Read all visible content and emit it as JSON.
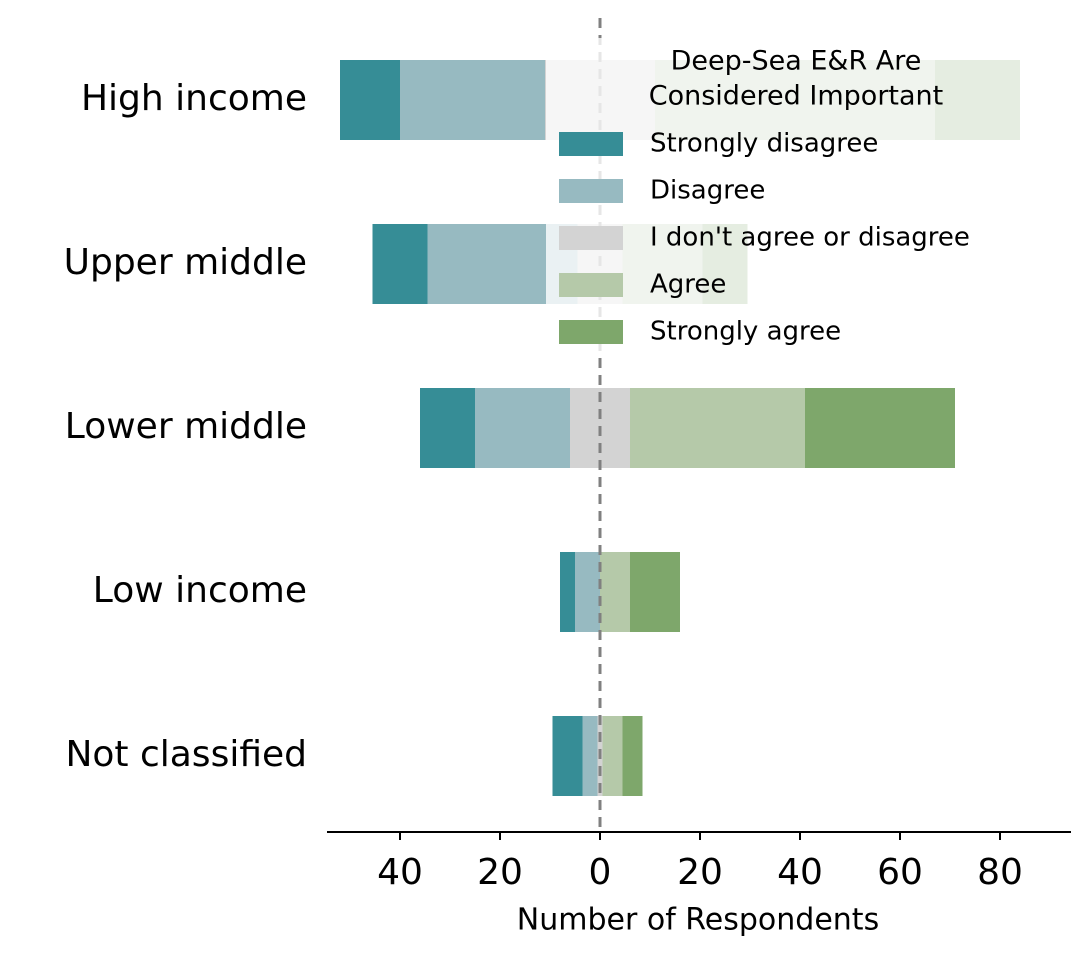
{
  "chart_data": {
    "type": "diverging_bar",
    "xlabel": "Number of Respondents",
    "legend_title": [
      "Deep-Sea E&R Are",
      "Considered Important"
    ],
    "legend": "upper right",
    "categories": [
      "High income",
      "Upper middle",
      "Lower middle",
      "Low income",
      "Not classified"
    ],
    "series": [
      {
        "name": "Strongly disagree",
        "color": "#368d96",
        "side": "negative",
        "values": [
          12,
          11,
          11,
          3,
          6
        ]
      },
      {
        "name": "Disagree",
        "color": "#97bac1",
        "side": "negative",
        "values": [
          29,
          30,
          19,
          5,
          3
        ]
      },
      {
        "name": "I don't agree or disagree",
        "color": "#d3d3d3",
        "side": "center",
        "values": [
          22,
          9,
          12,
          0,
          1
        ]
      },
      {
        "name": "Agree",
        "color": "#b5c9a9",
        "side": "positive",
        "values": [
          56,
          16,
          35,
          6,
          4
        ]
      },
      {
        "name": "Strongly agree",
        "color": "#7ea76b",
        "side": "positive",
        "values": [
          17,
          9,
          30,
          10,
          4
        ]
      }
    ],
    "xlim": [
      -54.6,
      94.2
    ],
    "xticks": [
      {
        "value": -40,
        "label": "40"
      },
      {
        "value": -20,
        "label": "20"
      },
      0,
      20,
      40,
      60,
      80
    ],
    "zero_line": true
  }
}
